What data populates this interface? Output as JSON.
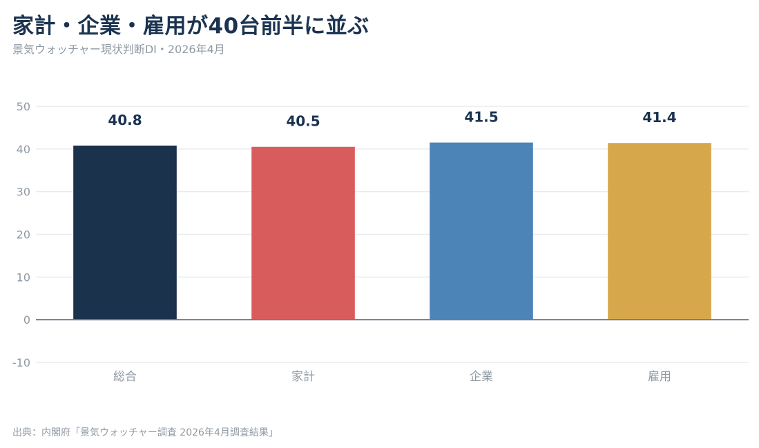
{
  "header": {
    "title": "家計・企業・雇用が40台前半に並ぶ",
    "subtitle": "景気ウォッチャー現状判断DI・2026年4月"
  },
  "footer": {
    "source": "出典：内閣府「景気ウォッチャー調査 2026年4月調査結果」"
  },
  "chart_data": {
    "type": "bar",
    "title": "家計・企業・雇用が40台前半に並ぶ",
    "subtitle": "景気ウォッチャー現状判断DI・2026年4月",
    "categories": [
      "総合",
      "家計",
      "企業",
      "雇用"
    ],
    "values": [
      40.8,
      40.5,
      41.5,
      41.4
    ],
    "value_labels": [
      "40.8",
      "40.5",
      "41.5",
      "41.4"
    ],
    "colors": [
      "#1b324d",
      "#d95c5c",
      "#4d84b7",
      "#d7a84b"
    ],
    "ylim": [
      -10,
      50
    ],
    "yticks": [
      -10,
      0,
      10,
      20,
      30,
      40,
      50
    ],
    "grid": true,
    "legend": "none"
  }
}
